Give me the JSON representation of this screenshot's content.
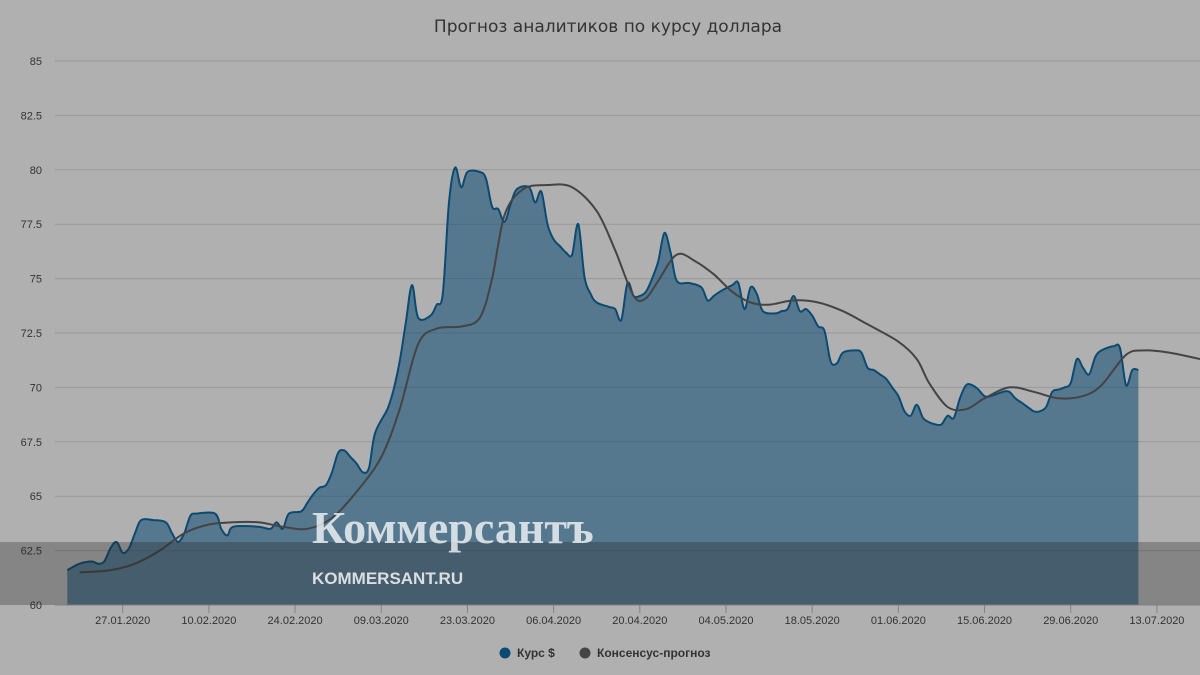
{
  "chart_data": {
    "type": "area",
    "title": "Прогноз аналитиков по курсу доллара",
    "xlabel": "",
    "ylabel": "",
    "ylim": [
      60,
      85
    ],
    "y_ticks": [
      60,
      62.5,
      65,
      67.5,
      70,
      72.5,
      75,
      77.5,
      80,
      82.5,
      85
    ],
    "x_range": [
      "2020-01-16",
      "2020-07-20"
    ],
    "x_ticks": [
      "27.01.2020",
      "10.02.2020",
      "24.02.2020",
      "09.03.2020",
      "23.03.2020",
      "06.04.2020",
      "20.04.2020",
      "04.05.2020",
      "18.05.2020",
      "01.06.2020",
      "15.06.2020",
      "29.06.2020",
      "13.07.2020"
    ],
    "grid": true,
    "legend_position": "bottom",
    "series": [
      {
        "name": "Курс $",
        "type": "area",
        "color": "#0b4a73",
        "points": [
          [
            "2020-01-18",
            61.6
          ],
          [
            "2020-01-20",
            61.9
          ],
          [
            "2020-01-22",
            62.0
          ],
          [
            "2020-01-23",
            61.9
          ],
          [
            "2020-01-24",
            62.0
          ],
          [
            "2020-01-25",
            62.6
          ],
          [
            "2020-01-26",
            62.9
          ],
          [
            "2020-01-27",
            62.4
          ],
          [
            "2020-01-28",
            62.6
          ],
          [
            "2020-01-29",
            63.3
          ],
          [
            "2020-01-30",
            63.9
          ],
          [
            "2020-02-01",
            63.9
          ],
          [
            "2020-02-03",
            63.8
          ],
          [
            "2020-02-04",
            63.3
          ],
          [
            "2020-02-05",
            62.9
          ],
          [
            "2020-02-06",
            63.3
          ],
          [
            "2020-02-07",
            64.1
          ],
          [
            "2020-02-08",
            64.2
          ],
          [
            "2020-02-11",
            64.2
          ],
          [
            "2020-02-12",
            63.5
          ],
          [
            "2020-02-13",
            63.2
          ],
          [
            "2020-02-14",
            63.6
          ],
          [
            "2020-02-18",
            63.6
          ],
          [
            "2020-02-20",
            63.5
          ],
          [
            "2020-02-21",
            63.8
          ],
          [
            "2020-02-22",
            63.5
          ],
          [
            "2020-02-23",
            64.2
          ],
          [
            "2020-02-25",
            64.3
          ],
          [
            "2020-02-26",
            64.7
          ],
          [
            "2020-02-27",
            65.1
          ],
          [
            "2020-02-28",
            65.4
          ],
          [
            "2020-02-29",
            65.5
          ],
          [
            "2020-03-01",
            66.1
          ],
          [
            "2020-03-02",
            67.0
          ],
          [
            "2020-03-03",
            67.1
          ],
          [
            "2020-03-04",
            66.8
          ],
          [
            "2020-03-05",
            66.5
          ],
          [
            "2020-03-06",
            66.1
          ],
          [
            "2020-03-07",
            66.3
          ],
          [
            "2020-03-08",
            67.9
          ],
          [
            "2020-03-10",
            69.0
          ],
          [
            "2020-03-11",
            69.9
          ],
          [
            "2020-03-12",
            71.2
          ],
          [
            "2020-03-13",
            73.0
          ],
          [
            "2020-03-14",
            74.7
          ],
          [
            "2020-03-15",
            73.2
          ],
          [
            "2020-03-17",
            73.3
          ],
          [
            "2020-03-18",
            73.8
          ],
          [
            "2020-03-19",
            74.3
          ],
          [
            "2020-03-20",
            78.5
          ],
          [
            "2020-03-21",
            80.1
          ],
          [
            "2020-03-22",
            79.2
          ],
          [
            "2020-03-23",
            79.9
          ],
          [
            "2020-03-25",
            79.9
          ],
          [
            "2020-03-26",
            79.6
          ],
          [
            "2020-03-27",
            78.3
          ],
          [
            "2020-03-28",
            78.2
          ],
          [
            "2020-03-29",
            77.6
          ],
          [
            "2020-03-30",
            78.4
          ],
          [
            "2020-03-31",
            79.1
          ],
          [
            "2020-04-02",
            79.2
          ],
          [
            "2020-04-03",
            78.5
          ],
          [
            "2020-04-04",
            79.0
          ],
          [
            "2020-04-05",
            77.5
          ],
          [
            "2020-04-06",
            76.8
          ],
          [
            "2020-04-07",
            76.5
          ],
          [
            "2020-04-08",
            76.2
          ],
          [
            "2020-04-09",
            76.1
          ],
          [
            "2020-04-10",
            77.5
          ],
          [
            "2020-04-11",
            75.1
          ],
          [
            "2020-04-12",
            74.3
          ],
          [
            "2020-04-13",
            73.9
          ],
          [
            "2020-04-15",
            73.7
          ],
          [
            "2020-04-16",
            73.6
          ],
          [
            "2020-04-17",
            73.1
          ],
          [
            "2020-04-18",
            74.8
          ],
          [
            "2020-04-19",
            74.2
          ],
          [
            "2020-04-20",
            74.2
          ],
          [
            "2020-04-21",
            74.4
          ],
          [
            "2020-04-22",
            75.0
          ],
          [
            "2020-04-23",
            75.8
          ],
          [
            "2020-04-24",
            77.1
          ],
          [
            "2020-04-25",
            76.2
          ],
          [
            "2020-04-26",
            74.9
          ],
          [
            "2020-04-28",
            74.8
          ],
          [
            "2020-04-30",
            74.6
          ],
          [
            "2020-05-01",
            74.0
          ],
          [
            "2020-05-02",
            74.2
          ],
          [
            "2020-05-03",
            74.4
          ],
          [
            "2020-05-05",
            74.7
          ],
          [
            "2020-05-06",
            74.8
          ],
          [
            "2020-05-07",
            73.6
          ],
          [
            "2020-05-08",
            74.6
          ],
          [
            "2020-05-09",
            74.3
          ],
          [
            "2020-05-10",
            73.5
          ],
          [
            "2020-05-12",
            73.4
          ],
          [
            "2020-05-13",
            73.5
          ],
          [
            "2020-05-14",
            73.6
          ],
          [
            "2020-05-15",
            74.2
          ],
          [
            "2020-05-16",
            73.5
          ],
          [
            "2020-05-17",
            73.6
          ],
          [
            "2020-05-18",
            73.3
          ],
          [
            "2020-05-19",
            72.8
          ],
          [
            "2020-05-20",
            72.6
          ],
          [
            "2020-05-21",
            71.2
          ],
          [
            "2020-05-22",
            71.1
          ],
          [
            "2020-05-23",
            71.6
          ],
          [
            "2020-05-25",
            71.7
          ],
          [
            "2020-05-26",
            71.6
          ],
          [
            "2020-05-27",
            70.9
          ],
          [
            "2020-05-28",
            70.8
          ],
          [
            "2020-05-29",
            70.6
          ],
          [
            "2020-05-30",
            70.4
          ],
          [
            "2020-05-31",
            70.0
          ],
          [
            "2020-06-01",
            69.6
          ],
          [
            "2020-06-02",
            68.9
          ],
          [
            "2020-06-03",
            68.7
          ],
          [
            "2020-06-04",
            69.2
          ],
          [
            "2020-06-05",
            68.6
          ],
          [
            "2020-06-06",
            68.4
          ],
          [
            "2020-06-07",
            68.3
          ],
          [
            "2020-06-08",
            68.3
          ],
          [
            "2020-06-09",
            68.7
          ],
          [
            "2020-06-10",
            68.6
          ],
          [
            "2020-06-11",
            69.5
          ],
          [
            "2020-06-12",
            70.1
          ],
          [
            "2020-06-13",
            70.1
          ],
          [
            "2020-06-14",
            69.9
          ],
          [
            "2020-06-15",
            69.6
          ],
          [
            "2020-06-16",
            69.6
          ],
          [
            "2020-06-18",
            69.8
          ],
          [
            "2020-06-19",
            69.8
          ],
          [
            "2020-06-20",
            69.5
          ],
          [
            "2020-06-21",
            69.3
          ],
          [
            "2020-06-22",
            69.1
          ],
          [
            "2020-06-23",
            68.9
          ],
          [
            "2020-06-24",
            68.9
          ],
          [
            "2020-06-25",
            69.1
          ],
          [
            "2020-06-26",
            69.8
          ],
          [
            "2020-06-27",
            69.9
          ],
          [
            "2020-06-28",
            70.0
          ],
          [
            "2020-06-29",
            70.2
          ],
          [
            "2020-06-30",
            71.3
          ],
          [
            "2020-07-01",
            70.9
          ],
          [
            "2020-07-02",
            70.6
          ],
          [
            "2020-07-03",
            71.4
          ],
          [
            "2020-07-04",
            71.7
          ],
          [
            "2020-07-06",
            71.9
          ],
          [
            "2020-07-07",
            71.8
          ],
          [
            "2020-07-08",
            70.1
          ],
          [
            "2020-07-09",
            70.8
          ],
          [
            "2020-07-10",
            70.8
          ]
        ]
      },
      {
        "name": "Консенсус-прогноз",
        "type": "line",
        "color": "#444444",
        "points": [
          [
            "2020-01-20",
            61.5
          ],
          [
            "2020-01-25",
            61.6
          ],
          [
            "2020-01-29",
            61.9
          ],
          [
            "2020-02-02",
            62.5
          ],
          [
            "2020-02-06",
            63.3
          ],
          [
            "2020-02-10",
            63.7
          ],
          [
            "2020-02-14",
            63.8
          ],
          [
            "2020-02-18",
            63.8
          ],
          [
            "2020-02-22",
            63.6
          ],
          [
            "2020-02-26",
            63.5
          ],
          [
            "2020-03-01",
            64.0
          ],
          [
            "2020-03-05",
            65.2
          ],
          [
            "2020-03-09",
            66.8
          ],
          [
            "2020-03-12",
            69.0
          ],
          [
            "2020-03-15",
            72.0
          ],
          [
            "2020-03-18",
            72.7
          ],
          [
            "2020-03-22",
            72.8
          ],
          [
            "2020-03-25",
            73.2
          ],
          [
            "2020-03-27",
            75.0
          ],
          [
            "2020-03-29",
            77.9
          ],
          [
            "2020-04-01",
            79.1
          ],
          [
            "2020-04-05",
            79.3
          ],
          [
            "2020-04-09",
            79.2
          ],
          [
            "2020-04-13",
            78.1
          ],
          [
            "2020-04-16",
            76.3
          ],
          [
            "2020-04-19",
            74.2
          ],
          [
            "2020-04-21",
            74.1
          ],
          [
            "2020-04-23",
            74.9
          ],
          [
            "2020-04-26",
            76.1
          ],
          [
            "2020-04-29",
            75.8
          ],
          [
            "2020-05-02",
            75.2
          ],
          [
            "2020-05-05",
            74.4
          ],
          [
            "2020-05-08",
            73.9
          ],
          [
            "2020-05-11",
            73.8
          ],
          [
            "2020-05-15",
            74.0
          ],
          [
            "2020-05-19",
            73.9
          ],
          [
            "2020-05-23",
            73.5
          ],
          [
            "2020-05-27",
            72.9
          ],
          [
            "2020-06-01",
            72.1
          ],
          [
            "2020-06-04",
            71.3
          ],
          [
            "2020-06-06",
            70.2
          ],
          [
            "2020-06-09",
            69.1
          ],
          [
            "2020-06-12",
            69.0
          ],
          [
            "2020-06-15",
            69.5
          ],
          [
            "2020-06-19",
            70.0
          ],
          [
            "2020-06-23",
            69.8
          ],
          [
            "2020-06-27",
            69.5
          ],
          [
            "2020-07-01",
            69.6
          ],
          [
            "2020-07-04",
            70.1
          ],
          [
            "2020-07-08",
            71.5
          ],
          [
            "2020-07-11",
            71.7
          ],
          [
            "2020-07-15",
            71.6
          ],
          [
            "2020-07-20",
            71.3
          ]
        ]
      }
    ],
    "legend": [
      {
        "label": "Курс $",
        "color": "#0b4a73"
      },
      {
        "label": "Консенсус-прогноз",
        "color": "#444444"
      }
    ]
  },
  "watermark": {
    "brand": "Коммерсантъ",
    "site": "KOMMERSANT.RU"
  }
}
